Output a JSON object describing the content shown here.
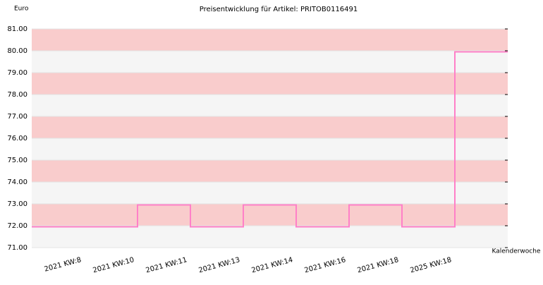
{
  "chart_data": {
    "type": "step",
    "title": "Preisentwicklung für Artikel: PRITOB0116491",
    "y_label": "Euro",
    "x_label": "Kalenderwoche",
    "categories": [
      "2021 KW:8",
      "2021 KW:10",
      "2021 KW:11",
      "2021 KW:13",
      "2021 KW:14",
      "2021 KW:16",
      "2021 KW:18",
      "2025 KW:18"
    ],
    "values": [
      71.95,
      72.95,
      71.95,
      72.95,
      71.95,
      72.95,
      71.95,
      79.95
    ],
    "color": "#ff80c8",
    "band_colors": [
      "#f5f5f5",
      "#f9cccc"
    ],
    "ylim": [
      71,
      81
    ],
    "yticks": [
      {
        "value": 71,
        "label": "71.00"
      },
      {
        "value": 72,
        "label": "72.00"
      },
      {
        "value": 73,
        "label": "73.00"
      },
      {
        "value": 74,
        "label": "74.00"
      },
      {
        "value": 75,
        "label": "75.00"
      },
      {
        "value": 76,
        "label": "76.00"
      },
      {
        "value": 77,
        "label": "77.00"
      },
      {
        "value": 78,
        "label": "78.00"
      },
      {
        "value": 79,
        "label": "79.00"
      },
      {
        "value": 80,
        "label": "80.00"
      },
      {
        "value": 81,
        "label": "81.00"
      }
    ]
  }
}
